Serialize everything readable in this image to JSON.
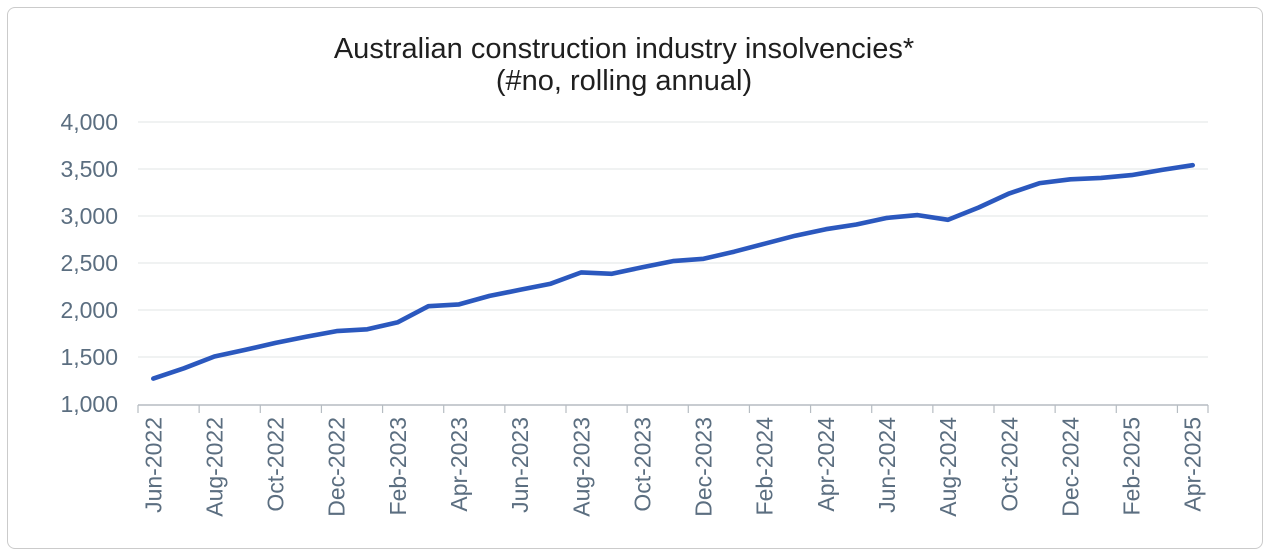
{
  "chart_data": {
    "type": "line",
    "title": "Australian construction industry insolvencies*",
    "subtitle": "(#no, rolling annual)",
    "x": [
      "Jun-2022",
      "Jul-2022",
      "Aug-2022",
      "Sep-2022",
      "Oct-2022",
      "Nov-2022",
      "Dec-2022",
      "Jan-2023",
      "Feb-2023",
      "Mar-2023",
      "Apr-2023",
      "May-2023",
      "Jun-2023",
      "Jul-2023",
      "Aug-2023",
      "Sep-2023",
      "Oct-2023",
      "Nov-2023",
      "Dec-2023",
      "Jan-2024",
      "Feb-2024",
      "Mar-2024",
      "Apr-2024",
      "May-2024",
      "Jun-2024",
      "Jul-2024",
      "Aug-2024",
      "Sep-2024",
      "Oct-2024",
      "Nov-2024",
      "Dec-2024",
      "Jan-2025",
      "Feb-2025",
      "Mar-2025",
      "Apr-2025"
    ],
    "series": [
      {
        "values": [
          1270,
          1380,
          1505,
          1575,
          1650,
          1715,
          1775,
          1795,
          1870,
          2040,
          2060,
          2150,
          2215,
          2280,
          2400,
          2385,
          2455,
          2520,
          2545,
          2620,
          2705,
          2790,
          2860,
          2910,
          2980,
          3010,
          2960,
          3090,
          3240,
          3350,
          3390,
          3405,
          3435,
          3490,
          3540
        ],
        "color": "#2b58be"
      }
    ],
    "ylim": [
      1000,
      4000
    ],
    "ytick_step": 500,
    "ytick_labels": [
      "1,000",
      "1,500",
      "2,000",
      "2,500",
      "3,000",
      "3,500",
      "4,000"
    ],
    "xtick_every": 2,
    "x_label_rotation": -90,
    "grid": "horizontal-only",
    "legend": "none",
    "colors": {
      "line": "#2b58be",
      "tick_label": "#5b6e80",
      "grid": "#e8e9eb",
      "axis": "#b6bcc2",
      "title": "#1f1f1f",
      "frame_border": "#cbcbcb",
      "background": "#ffffff"
    }
  }
}
